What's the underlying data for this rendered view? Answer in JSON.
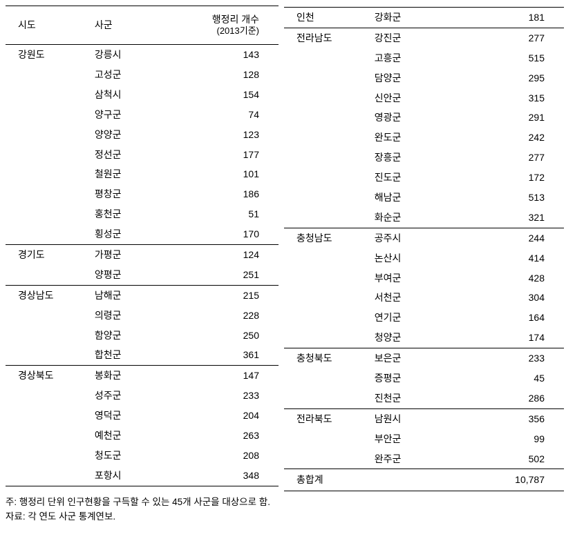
{
  "headers": {
    "sido": "시도",
    "sigun": "사군",
    "count_line1": "행정리 개수",
    "count_line2": "(2013기준)"
  },
  "left_rows": [
    {
      "sido": "강원도",
      "sigun": "강릉시",
      "count": "143",
      "group_first": true
    },
    {
      "sido": "",
      "sigun": "고성군",
      "count": "128"
    },
    {
      "sido": "",
      "sigun": "삼척시",
      "count": "154"
    },
    {
      "sido": "",
      "sigun": "양구군",
      "count": "74"
    },
    {
      "sido": "",
      "sigun": "양양군",
      "count": "123"
    },
    {
      "sido": "",
      "sigun": "정선군",
      "count": "177"
    },
    {
      "sido": "",
      "sigun": "철원군",
      "count": "101"
    },
    {
      "sido": "",
      "sigun": "평창군",
      "count": "186"
    },
    {
      "sido": "",
      "sigun": "홍천군",
      "count": "51"
    },
    {
      "sido": "",
      "sigun": "횡성군",
      "count": "170"
    },
    {
      "sido": "경기도",
      "sigun": "가평군",
      "count": "124",
      "group_first": true
    },
    {
      "sido": "",
      "sigun": "양평군",
      "count": "251"
    },
    {
      "sido": "경상남도",
      "sigun": "남해군",
      "count": "215",
      "group_first": true
    },
    {
      "sido": "",
      "sigun": "의령군",
      "count": "228"
    },
    {
      "sido": "",
      "sigun": "함양군",
      "count": "250"
    },
    {
      "sido": "",
      "sigun": "합천군",
      "count": "361"
    },
    {
      "sido": "경상북도",
      "sigun": "봉화군",
      "count": "147",
      "group_first": true
    },
    {
      "sido": "",
      "sigun": "성주군",
      "count": "233"
    },
    {
      "sido": "",
      "sigun": "영덕군",
      "count": "204"
    },
    {
      "sido": "",
      "sigun": "예천군",
      "count": "263"
    },
    {
      "sido": "",
      "sigun": "청도군",
      "count": "208"
    },
    {
      "sido": "",
      "sigun": "포항시",
      "count": "348",
      "last_row": true
    }
  ],
  "right_rows": [
    {
      "sido": "인천",
      "sigun": "강화군",
      "count": "181"
    },
    {
      "sido": "전라남도",
      "sigun": "강진군",
      "count": "277",
      "group_first": true
    },
    {
      "sido": "",
      "sigun": "고흥군",
      "count": "515"
    },
    {
      "sido": "",
      "sigun": "담양군",
      "count": "295"
    },
    {
      "sido": "",
      "sigun": "신안군",
      "count": "315"
    },
    {
      "sido": "",
      "sigun": "영광군",
      "count": "291"
    },
    {
      "sido": "",
      "sigun": "완도군",
      "count": "242"
    },
    {
      "sido": "",
      "sigun": "장흥군",
      "count": "277"
    },
    {
      "sido": "",
      "sigun": "진도군",
      "count": "172"
    },
    {
      "sido": "",
      "sigun": "해남군",
      "count": "513"
    },
    {
      "sido": "",
      "sigun": "화순군",
      "count": "321"
    },
    {
      "sido": "충청남도",
      "sigun": "공주시",
      "count": "244",
      "group_first": true
    },
    {
      "sido": "",
      "sigun": "논산시",
      "count": "414"
    },
    {
      "sido": "",
      "sigun": "부여군",
      "count": "428"
    },
    {
      "sido": "",
      "sigun": "서천군",
      "count": "304"
    },
    {
      "sido": "",
      "sigun": "연기군",
      "count": "164"
    },
    {
      "sido": "",
      "sigun": "청양군",
      "count": "174"
    },
    {
      "sido": "충청북도",
      "sigun": "보은군",
      "count": "233",
      "group_first": true
    },
    {
      "sido": "",
      "sigun": "증평군",
      "count": "45"
    },
    {
      "sido": "",
      "sigun": "진천군",
      "count": "286"
    },
    {
      "sido": "전라북도",
      "sigun": "남원시",
      "count": "356",
      "group_first": true
    },
    {
      "sido": "",
      "sigun": "부안군",
      "count": "99"
    },
    {
      "sido": "",
      "sigun": "완주군",
      "count": "502"
    }
  ],
  "total": {
    "label": "총합계",
    "value": "10,787"
  },
  "footnotes": {
    "note": "주: 행정리 단위 인구현황을 구득할 수 있는 45개 사군을 대상으로 함.",
    "source": "자료: 각 연도 사군 통계연보."
  }
}
